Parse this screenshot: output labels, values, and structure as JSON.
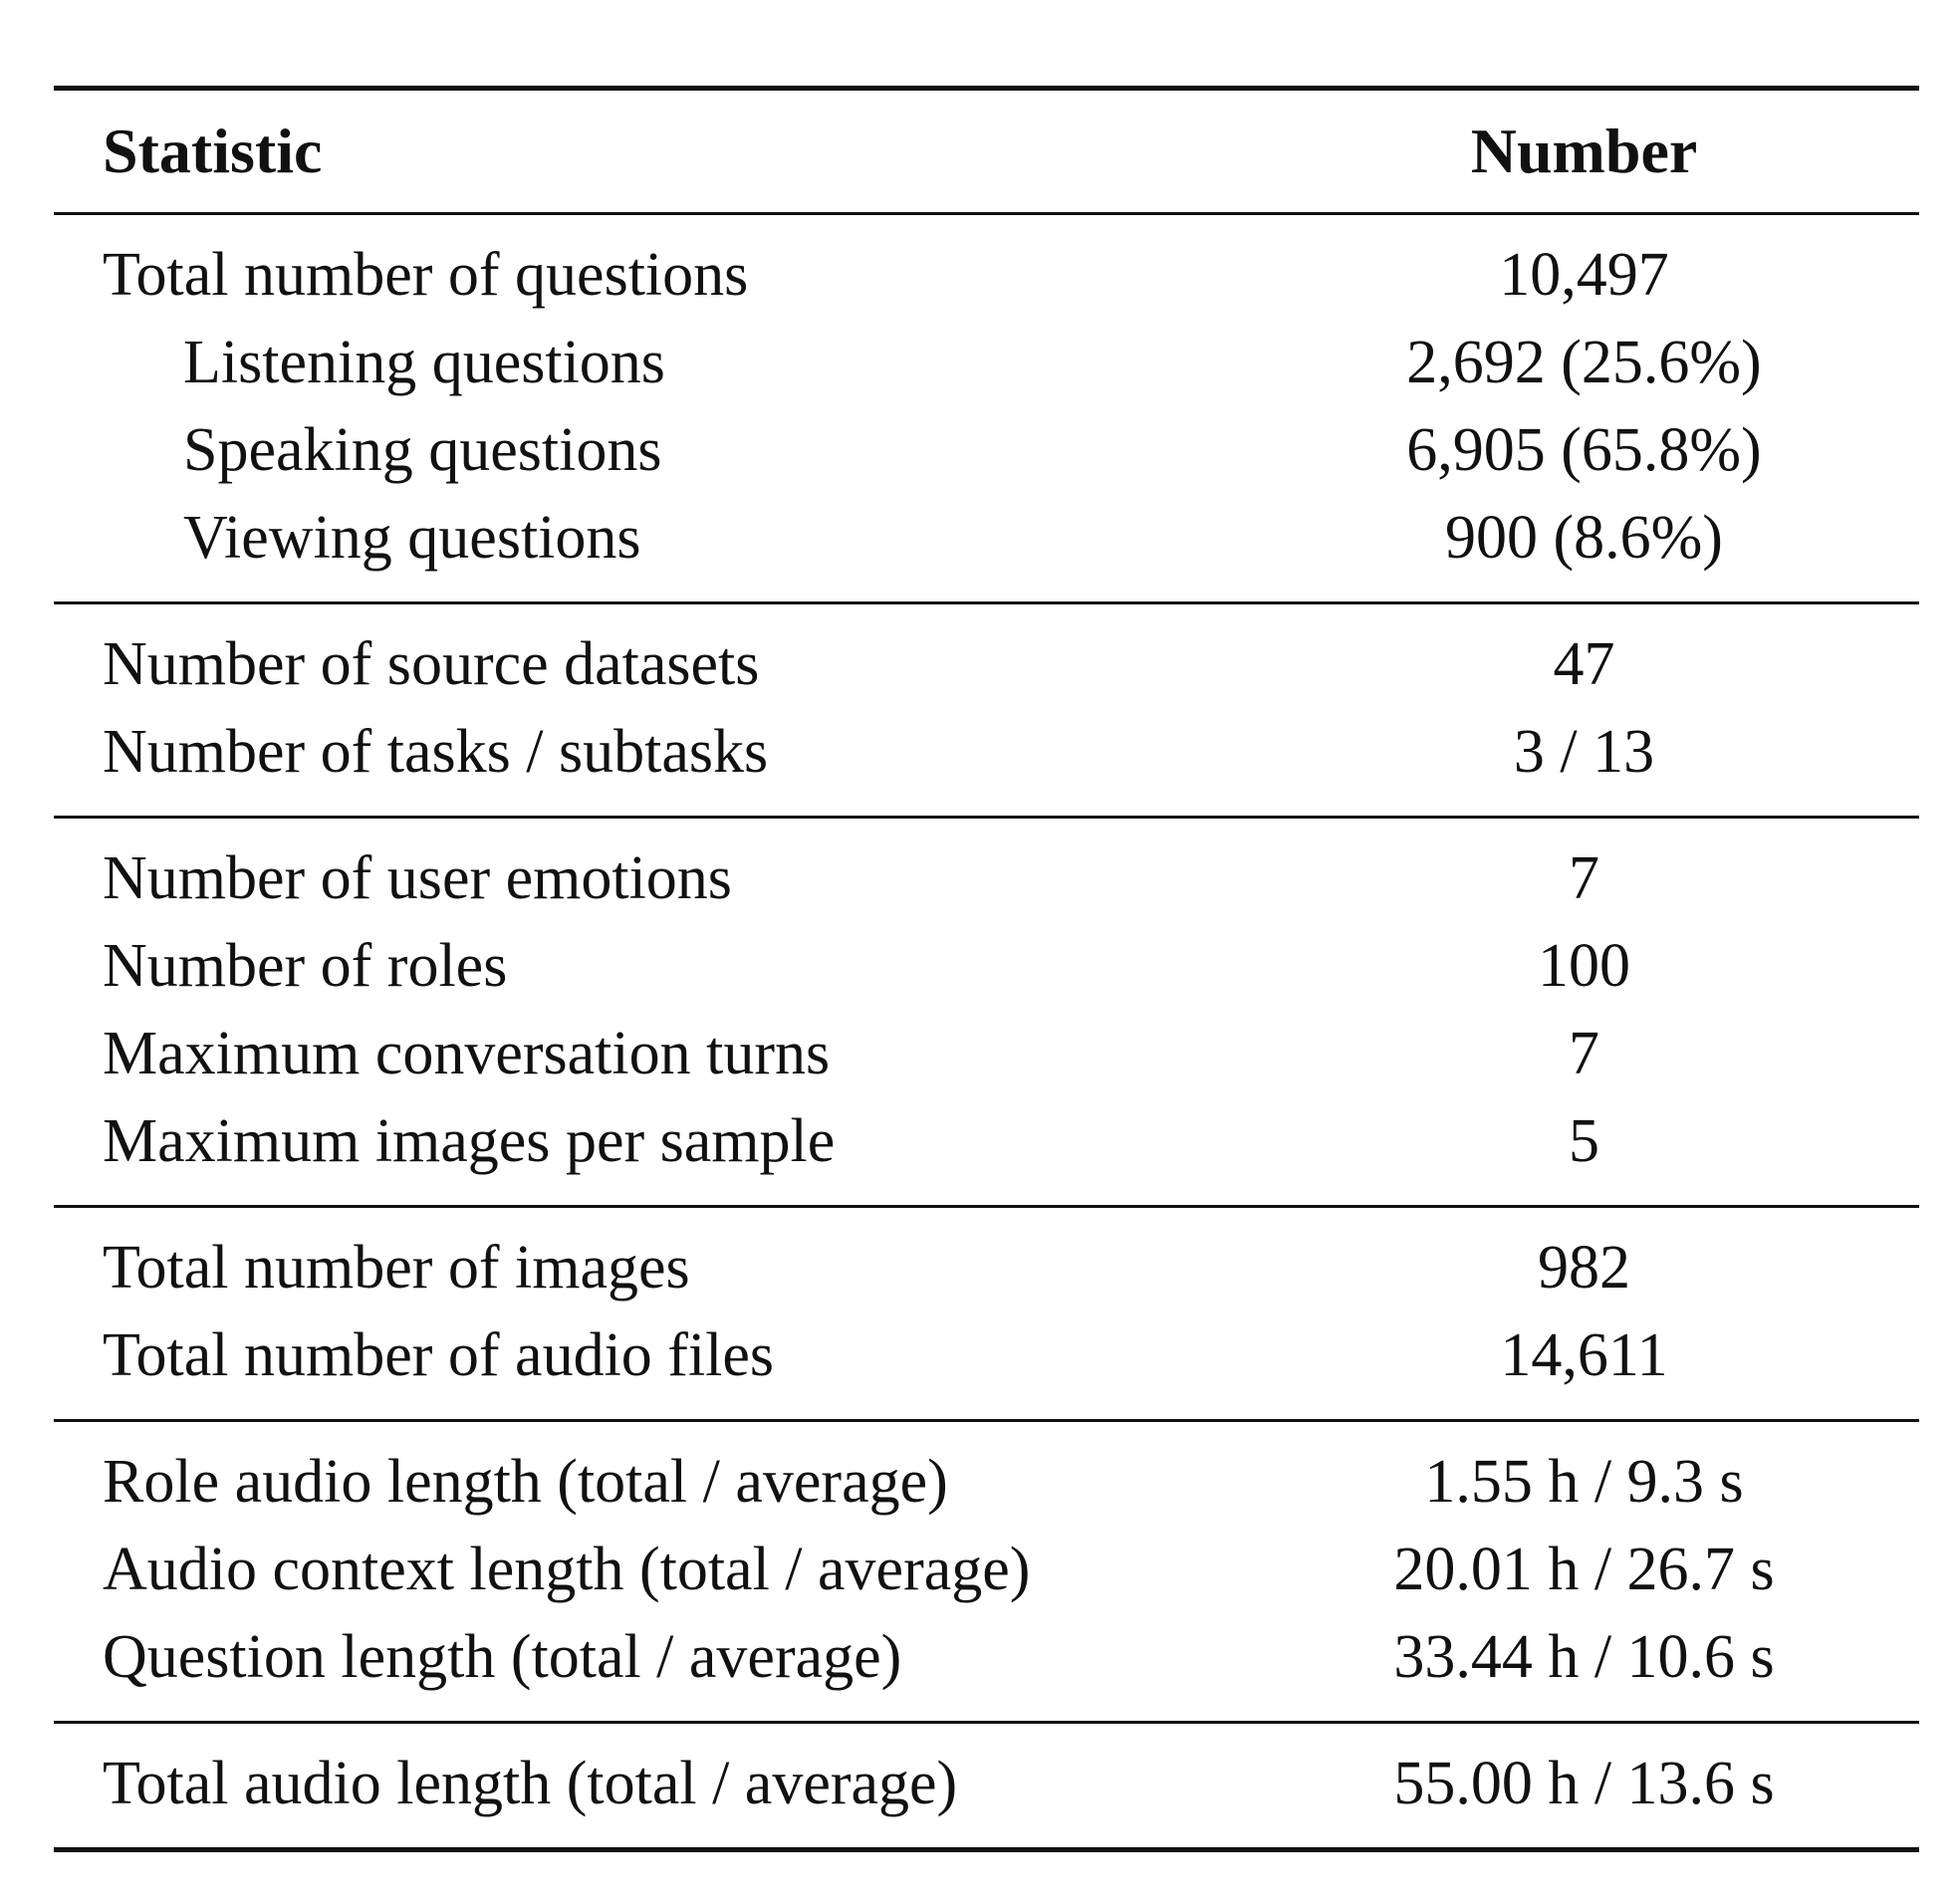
{
  "header": {
    "statistic": "Statistic",
    "number": "Number"
  },
  "groups": [
    {
      "rows": [
        {
          "label": "Total number of questions",
          "value": "10,497",
          "indent": false
        },
        {
          "label": "Listening questions",
          "value": "2,692 (25.6%)",
          "indent": true
        },
        {
          "label": "Speaking questions",
          "value": "6,905 (65.8%)",
          "indent": true
        },
        {
          "label": "Viewing questions",
          "value": "900 (8.6%)",
          "indent": true
        }
      ]
    },
    {
      "rows": [
        {
          "label": "Number of source datasets",
          "value": "47",
          "indent": false
        },
        {
          "label": "Number of tasks / subtasks",
          "value": "3 / 13",
          "indent": false
        }
      ]
    },
    {
      "rows": [
        {
          "label": "Number of user emotions",
          "value": "7",
          "indent": false
        },
        {
          "label": "Number of roles",
          "value": "100",
          "indent": false
        },
        {
          "label": "Maximum conversation turns",
          "value": "7",
          "indent": false
        },
        {
          "label": "Maximum images per sample",
          "value": "5",
          "indent": false
        }
      ]
    },
    {
      "rows": [
        {
          "label": "Total number of images",
          "value": "982",
          "indent": false
        },
        {
          "label": "Total number of audio files",
          "value": "14,611",
          "indent": false
        }
      ]
    },
    {
      "rows": [
        {
          "label": "Role audio length (total / average)",
          "value": "1.55 h / 9.3 s",
          "indent": false
        },
        {
          "label": "Audio context length (total / average)",
          "value": "20.01 h / 26.7 s",
          "indent": false
        },
        {
          "label": "Question length (total / average)",
          "value": "33.44 h / 10.6 s",
          "indent": false
        }
      ]
    },
    {
      "rows": [
        {
          "label": "Total audio length (total / average)",
          "value": "55.00 h / 13.6 s",
          "indent": false
        }
      ]
    }
  ]
}
